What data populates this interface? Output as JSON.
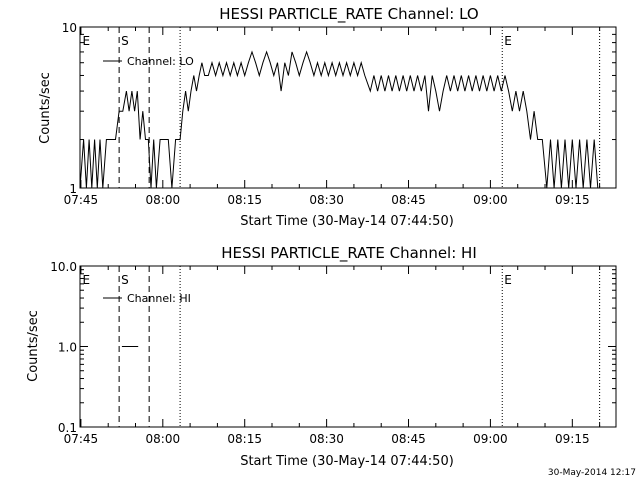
{
  "footer": {
    "timestamp": "30-May-2014 12:17"
  },
  "colors": {
    "background": "#ffffff",
    "foreground": "#000000"
  },
  "chart_data": [
    {
      "type": "line",
      "title": "HESSI PARTICLE_RATE Channel: LO",
      "xlabel": "Start Time (30-May-14 07:44:50)",
      "ylabel": "Counts/sec",
      "yscale": "log",
      "ylim": [
        1,
        10
      ],
      "y_ticks": [
        {
          "v": 1,
          "label": "1"
        },
        {
          "v": 10,
          "label": "10"
        }
      ],
      "xlim": [
        "07:44:50",
        "09:23:00"
      ],
      "x_ticks": [
        "07:45",
        "08:00",
        "08:15",
        "08:30",
        "08:45",
        "09:00",
        "09:15"
      ],
      "legend": {
        "label": "Channel: LO",
        "position": "top-left"
      },
      "markers": [
        {
          "time": "07:44:55",
          "label": "E",
          "style": "none"
        },
        {
          "time": "07:52:00",
          "label": "S",
          "style": "dashed"
        },
        {
          "time": "07:57:30",
          "label": "",
          "style": "dashed"
        },
        {
          "time": "08:03:10",
          "label": "",
          "style": "dotted"
        },
        {
          "time": "09:02:10",
          "label": "E",
          "style": "dotted"
        },
        {
          "time": "09:20:00",
          "label": "",
          "style": "dotted"
        }
      ],
      "grid": false,
      "series": [
        {
          "name": "Channel: LO",
          "points": [
            [
              "07:44:50",
              1
            ],
            [
              "07:45:30",
              2
            ],
            [
              "07:46:00",
              1
            ],
            [
              "07:46:30",
              2
            ],
            [
              "07:47:00",
              1
            ],
            [
              "07:47:30",
              2
            ],
            [
              "07:48:00",
              1
            ],
            [
              "07:48:30",
              2
            ],
            [
              "07:49:00",
              1
            ],
            [
              "07:49:40",
              2
            ],
            [
              "07:50:30",
              2
            ],
            [
              "07:51:20",
              2
            ],
            [
              "07:52:00",
              3
            ],
            [
              "07:52:40",
              3
            ],
            [
              "07:53:20",
              4
            ],
            [
              "07:53:50",
              3
            ],
            [
              "07:54:20",
              4
            ],
            [
              "07:54:50",
              3
            ],
            [
              "07:55:20",
              4
            ],
            [
              "07:55:50",
              2
            ],
            [
              "07:56:20",
              3
            ],
            [
              "07:56:50",
              2
            ],
            [
              "07:57:20",
              2
            ],
            [
              "07:57:50",
              1
            ],
            [
              "07:58:20",
              2
            ],
            [
              "07:58:50",
              1
            ],
            [
              "07:59:30",
              2
            ],
            [
              "08:00:10",
              2
            ],
            [
              "08:01:00",
              2
            ],
            [
              "08:01:40",
              1
            ],
            [
              "08:02:20",
              2
            ],
            [
              "08:03:10",
              2
            ],
            [
              "08:03:40",
              3
            ],
            [
              "08:04:10",
              4
            ],
            [
              "08:04:40",
              3
            ],
            [
              "08:05:10",
              4
            ],
            [
              "08:05:40",
              5
            ],
            [
              "08:06:10",
              4
            ],
            [
              "08:06:40",
              5
            ],
            [
              "08:07:10",
              6
            ],
            [
              "08:07:40",
              5
            ],
            [
              "08:08:20",
              5
            ],
            [
              "08:09:00",
              6
            ],
            [
              "08:09:40",
              5
            ],
            [
              "08:10:20",
              6
            ],
            [
              "08:11:00",
              5
            ],
            [
              "08:11:40",
              6
            ],
            [
              "08:12:20",
              5
            ],
            [
              "08:13:00",
              6
            ],
            [
              "08:13:40",
              5
            ],
            [
              "08:14:20",
              6
            ],
            [
              "08:15:00",
              5
            ],
            [
              "08:15:40",
              6
            ],
            [
              "08:16:20",
              7
            ],
            [
              "08:17:00",
              6
            ],
            [
              "08:17:40",
              5
            ],
            [
              "08:18:20",
              6
            ],
            [
              "08:19:00",
              7
            ],
            [
              "08:19:40",
              6
            ],
            [
              "08:20:20",
              5
            ],
            [
              "08:21:00",
              6
            ],
            [
              "08:21:40",
              4
            ],
            [
              "08:22:20",
              6
            ],
            [
              "08:23:00",
              5
            ],
            [
              "08:23:40",
              7
            ],
            [
              "08:24:20",
              6
            ],
            [
              "08:25:00",
              5
            ],
            [
              "08:25:40",
              6
            ],
            [
              "08:26:20",
              7
            ],
            [
              "08:27:00",
              6
            ],
            [
              "08:27:40",
              5
            ],
            [
              "08:28:20",
              6
            ],
            [
              "08:29:00",
              5
            ],
            [
              "08:29:40",
              6
            ],
            [
              "08:30:20",
              5
            ],
            [
              "08:31:00",
              6
            ],
            [
              "08:31:40",
              5
            ],
            [
              "08:32:20",
              6
            ],
            [
              "08:33:00",
              5
            ],
            [
              "08:33:40",
              6
            ],
            [
              "08:34:20",
              5
            ],
            [
              "08:35:00",
              6
            ],
            [
              "08:35:40",
              5
            ],
            [
              "08:36:20",
              6
            ],
            [
              "08:37:00",
              5
            ],
            [
              "08:38:00",
              4
            ],
            [
              "08:38:40",
              5
            ],
            [
              "08:39:20",
              4
            ],
            [
              "08:40:00",
              5
            ],
            [
              "08:40:40",
              4
            ],
            [
              "08:41:20",
              5
            ],
            [
              "08:42:00",
              4
            ],
            [
              "08:42:40",
              5
            ],
            [
              "08:43:20",
              4
            ],
            [
              "08:44:00",
              5
            ],
            [
              "08:44:40",
              4
            ],
            [
              "08:45:20",
              5
            ],
            [
              "08:46:00",
              4
            ],
            [
              "08:46:40",
              5
            ],
            [
              "08:47:20",
              4
            ],
            [
              "08:48:00",
              5
            ],
            [
              "08:48:40",
              3
            ],
            [
              "08:49:20",
              5
            ],
            [
              "08:50:00",
              4
            ],
            [
              "08:50:40",
              3
            ],
            [
              "08:51:20",
              4
            ],
            [
              "08:52:00",
              5
            ],
            [
              "08:52:40",
              4
            ],
            [
              "08:53:20",
              5
            ],
            [
              "08:54:00",
              4
            ],
            [
              "08:54:40",
              5
            ],
            [
              "08:55:20",
              4
            ],
            [
              "08:56:00",
              5
            ],
            [
              "08:56:40",
              4
            ],
            [
              "08:57:20",
              5
            ],
            [
              "08:58:00",
              4
            ],
            [
              "08:58:40",
              5
            ],
            [
              "08:59:20",
              4
            ],
            [
              "09:00:00",
              5
            ],
            [
              "09:00:40",
              4
            ],
            [
              "09:01:20",
              5
            ],
            [
              "09:02:00",
              4
            ],
            [
              "09:02:40",
              5
            ],
            [
              "09:03:20",
              4
            ],
            [
              "09:04:00",
              3
            ],
            [
              "09:04:40",
              4
            ],
            [
              "09:05:20",
              3
            ],
            [
              "09:06:00",
              4
            ],
            [
              "09:06:40",
              3
            ],
            [
              "09:07:20",
              2
            ],
            [
              "09:08:00",
              3
            ],
            [
              "09:08:40",
              2
            ],
            [
              "09:09:30",
              2
            ],
            [
              "09:10:20",
              1
            ],
            [
              "09:11:00",
              2
            ],
            [
              "09:11:40",
              1
            ],
            [
              "09:12:20",
              2
            ],
            [
              "09:13:00",
              1
            ],
            [
              "09:13:40",
              2
            ],
            [
              "09:14:20",
              1
            ],
            [
              "09:15:00",
              2
            ],
            [
              "09:15:40",
              1
            ],
            [
              "09:16:20",
              2
            ],
            [
              "09:17:00",
              1
            ],
            [
              "09:17:40",
              2
            ],
            [
              "09:18:20",
              1
            ],
            [
              "09:19:00",
              2
            ],
            [
              "09:19:40",
              1
            ],
            [
              "09:20:00",
              1
            ]
          ]
        }
      ]
    },
    {
      "type": "line",
      "title": "HESSI PARTICLE_RATE Channel: HI",
      "xlabel": "Start Time (30-May-14 07:44:50)",
      "ylabel": "Counts/sec",
      "yscale": "log",
      "ylim": [
        0.1,
        10
      ],
      "y_ticks": [
        {
          "v": 0.1,
          "label": "0.1"
        },
        {
          "v": 1,
          "label": "1.0"
        },
        {
          "v": 10,
          "label": "10.0"
        }
      ],
      "xlim": [
        "07:44:50",
        "09:23:00"
      ],
      "x_ticks": [
        "07:45",
        "08:00",
        "08:15",
        "08:30",
        "08:45",
        "09:00",
        "09:15"
      ],
      "legend": {
        "label": "Channel: HI",
        "position": "top-left"
      },
      "markers": [
        {
          "time": "07:44:55",
          "label": "E",
          "style": "none"
        },
        {
          "time": "07:52:00",
          "label": "S",
          "style": "dashed"
        },
        {
          "time": "07:57:30",
          "label": "",
          "style": "dashed"
        },
        {
          "time": "08:03:10",
          "label": "",
          "style": "dotted"
        },
        {
          "time": "09:02:10",
          "label": "E",
          "style": "dotted"
        },
        {
          "time": "09:20:00",
          "label": "",
          "style": "dotted"
        }
      ],
      "grid": false,
      "series": [
        {
          "name": "Channel: HI",
          "points": [
            [
              "07:52:30",
              1
            ],
            [
              "07:55:30",
              1
            ]
          ]
        }
      ]
    }
  ]
}
